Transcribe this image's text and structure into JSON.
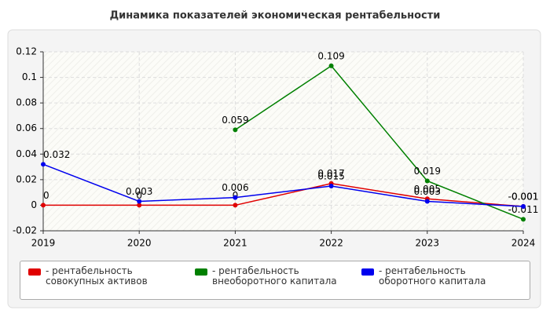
{
  "chart_data": {
    "type": "line",
    "title": "Динамика показателей экономическая рентабельности",
    "x": [
      2019,
      2020,
      2021,
      2022,
      2023,
      2024
    ],
    "series": [
      {
        "name": "- рентабельность совокупных активов",
        "color": "#e00000",
        "values": [
          0,
          0,
          0,
          0.017,
          0.005,
          -0.001
        ]
      },
      {
        "name": "- рентабельность внеоборотного капитала",
        "color": "#008000",
        "values": [
          null,
          null,
          0.059,
          0.109,
          0.019,
          -0.011
        ]
      },
      {
        "name": "- рентабельность оборотного капитала",
        "color": "#0000ee",
        "values": [
          0.032,
          0.003,
          0.006,
          0.015,
          0.003,
          -0.001
        ]
      }
    ],
    "xlim": [
      2019,
      2024
    ],
    "xticks": [
      2019,
      2020,
      2021,
      2022,
      2023,
      2024
    ],
    "ylim": [
      -0.02,
      0.12
    ],
    "yticks": [
      -0.02,
      0,
      0.02,
      0.04,
      0.06,
      0.08,
      0.1,
      0.12
    ],
    "grid": true,
    "legend": "bottom"
  }
}
